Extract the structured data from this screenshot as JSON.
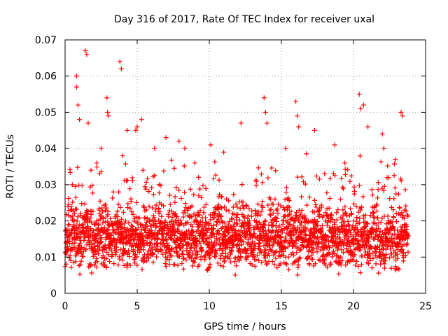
{
  "chart_data": {
    "type": "scatter",
    "title": "Day 316 of 2017, Rate Of TEC Index for receiver uxal",
    "xlabel": "GPS time / hours",
    "ylabel": "ROTI / TECUs",
    "xlim": [
      0,
      25
    ],
    "ylim": [
      0,
      0.07
    ],
    "xticks": [
      0,
      5,
      10,
      15,
      20,
      25
    ],
    "xtick_labels": [
      "0",
      "5",
      "10",
      "15",
      "20",
      "25"
    ],
    "yticks": [
      0,
      0.01,
      0.02,
      0.03,
      0.04,
      0.05,
      0.06,
      0.07
    ],
    "ytick_labels": [
      "0",
      "0.01",
      "0.02",
      "0.03",
      "0.04",
      "0.05",
      "0.06",
      "0.07"
    ],
    "grid": true,
    "marker": "+",
    "marker_color": "#ff0000",
    "data_range_x": [
      0,
      23.8
    ],
    "series": [
      {
        "name": "ROTI",
        "x": [
          0.2,
          0.5,
          0.8,
          0.8,
          0.9,
          1.0,
          1.4,
          1.5,
          1.6,
          1.8,
          2.2,
          2.5,
          2.9,
          2.95,
          3.0,
          3.8,
          3.9,
          4.0,
          4.3,
          4.9,
          5.0,
          5.3,
          5.4,
          6.2,
          7.0,
          7.9,
          8.3,
          9.0,
          10.1,
          11.0,
          12.2,
          13.8,
          13.9,
          14.0,
          15.3,
          16.0,
          16.1,
          16.2,
          17.3,
          18.0,
          18.7,
          19.4,
          20.4,
          20.5,
          20.7,
          21.0,
          22.0,
          22.1,
          22.9,
          23.3,
          23.4
        ],
        "y": [
          0.024,
          0.03,
          0.06,
          0.057,
          0.052,
          0.048,
          0.067,
          0.066,
          0.047,
          0.034,
          0.036,
          0.04,
          0.054,
          0.05,
          0.049,
          0.064,
          0.062,
          0.038,
          0.045,
          0.045,
          0.046,
          0.048,
          0.034,
          0.04,
          0.043,
          0.042,
          0.04,
          0.036,
          0.041,
          0.039,
          0.047,
          0.054,
          0.05,
          0.047,
          0.04,
          0.053,
          0.049,
          0.046,
          0.045,
          0.033,
          0.041,
          0.036,
          0.055,
          0.051,
          0.052,
          0.046,
          0.044,
          0.04,
          0.037,
          0.05,
          0.049
        ]
      }
    ]
  }
}
